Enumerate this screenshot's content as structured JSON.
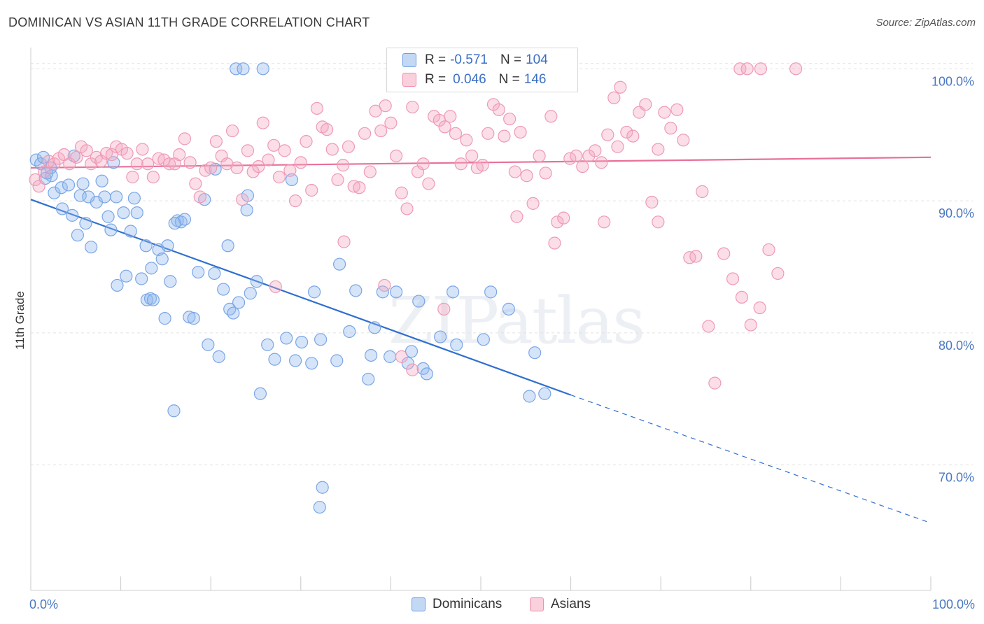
{
  "title": "DOMINICAN VS ASIAN 11TH GRADE CORRELATION CHART",
  "source": "Source: ZipAtlas.com",
  "watermark": "ZIPatlas",
  "legend": {
    "rows": [
      {
        "r_label": "R =",
        "r_value": "-0.571",
        "n_label": "N =",
        "n_value": "104",
        "color": "#90b8ec"
      },
      {
        "r_label": "R =",
        "r_value": "0.046",
        "n_label": "N =",
        "n_value": "146",
        "color": "#f4a9c0"
      }
    ]
  },
  "bottom_legend": [
    {
      "label": "Dominicans",
      "color": "#90b8ec"
    },
    {
      "label": "Asians",
      "color": "#f4a9c0"
    }
  ],
  "chart_data": {
    "type": "scatter",
    "title": "DOMINICAN VS ASIAN 11TH GRADE CORRELATION CHART",
    "xlabel": "",
    "ylabel": "11th Grade",
    "xlim": [
      0,
      100
    ],
    "ylim": [
      60.5,
      101.5
    ],
    "x_tick_labels": [
      "0.0%",
      "100.0%"
    ],
    "y_ticks": [
      70,
      80,
      90,
      100
    ],
    "y_tick_labels": [
      "70.0%",
      "80.0%",
      "90.0%",
      "100.0%"
    ],
    "grid": true,
    "series": [
      {
        "name": "Dominicans",
        "color": "#90b8ec",
        "line_color": "#2f6fcf",
        "trend": {
          "x0": 0,
          "y0": 90.1,
          "x1": 60,
          "y1": 75.3,
          "dash_to_x": 100,
          "dash_to_y": 65.6
        },
        "points": [
          [
            0.6,
            93.1
          ],
          [
            1.1,
            92.8
          ],
          [
            1.6,
            91.7
          ],
          [
            2.3,
            91.9
          ],
          [
            1.8,
            92.1
          ],
          [
            2.6,
            90.6
          ],
          [
            3.4,
            91.0
          ],
          [
            4.2,
            91.2
          ],
          [
            3.5,
            89.4
          ],
          [
            4.6,
            88.9
          ],
          [
            5.5,
            90.4
          ],
          [
            6.1,
            88.3
          ],
          [
            5.2,
            87.4
          ],
          [
            6.7,
            86.5
          ],
          [
            7.3,
            89.9
          ],
          [
            8.2,
            90.3
          ],
          [
            8.6,
            88.8
          ],
          [
            9.5,
            90.3
          ],
          [
            8.9,
            87.8
          ],
          [
            10.3,
            89.1
          ],
          [
            11.1,
            87.7
          ],
          [
            10.6,
            84.3
          ],
          [
            9.6,
            83.6
          ],
          [
            11.5,
            90.2
          ],
          [
            11.8,
            89.1
          ],
          [
            12.3,
            84.1
          ],
          [
            12.9,
            82.5
          ],
          [
            13.3,
            82.6
          ],
          [
            13.6,
            82.5
          ],
          [
            12.8,
            86.6
          ],
          [
            13.4,
            84.9
          ],
          [
            14.2,
            86.3
          ],
          [
            14.6,
            85.6
          ],
          [
            15.2,
            86.6
          ],
          [
            15.5,
            83.9
          ],
          [
            16.3,
            88.5
          ],
          [
            16.7,
            88.4
          ],
          [
            17.1,
            88.6
          ],
          [
            16.0,
            88.3
          ],
          [
            14.9,
            81.1
          ],
          [
            17.6,
            81.2
          ],
          [
            18.1,
            81.1
          ],
          [
            18.6,
            84.6
          ],
          [
            19.3,
            90.1
          ],
          [
            19.7,
            79.1
          ],
          [
            20.4,
            84.5
          ],
          [
            20.9,
            78.2
          ],
          [
            21.4,
            83.3
          ],
          [
            21.9,
            86.6
          ],
          [
            22.1,
            81.8
          ],
          [
            22.5,
            81.5
          ],
          [
            23.1,
            82.3
          ],
          [
            24.1,
            90.4
          ],
          [
            22.8,
            100.0
          ],
          [
            23.6,
            100.0
          ],
          [
            25.8,
            100.0
          ],
          [
            24.0,
            89.3
          ],
          [
            25.1,
            83.9
          ],
          [
            24.4,
            83.0
          ],
          [
            26.3,
            79.1
          ],
          [
            27.1,
            78.0
          ],
          [
            25.5,
            75.4
          ],
          [
            30.1,
            79.3
          ],
          [
            31.2,
            77.7
          ],
          [
            28.4,
            79.6
          ],
          [
            29.4,
            77.9
          ],
          [
            29.0,
            91.6
          ],
          [
            31.5,
            83.1
          ],
          [
            32.2,
            79.5
          ],
          [
            34.3,
            85.2
          ],
          [
            35.4,
            80.1
          ],
          [
            34.0,
            77.9
          ],
          [
            37.8,
            78.3
          ],
          [
            37.5,
            76.5
          ],
          [
            36.1,
            83.2
          ],
          [
            38.2,
            80.4
          ],
          [
            39.1,
            83.1
          ],
          [
            40.6,
            83.1
          ],
          [
            39.9,
            78.2
          ],
          [
            41.9,
            77.7
          ],
          [
            42.3,
            78.6
          ],
          [
            43.6,
            77.3
          ],
          [
            44.0,
            76.9
          ],
          [
            43.1,
            82.4
          ],
          [
            45.5,
            79.7
          ],
          [
            47.3,
            79.1
          ],
          [
            46.9,
            83.1
          ],
          [
            50.3,
            79.5
          ],
          [
            51.1,
            83.1
          ],
          [
            53.1,
            81.8
          ],
          [
            55.4,
            75.2
          ],
          [
            56.0,
            78.5
          ],
          [
            57.1,
            75.4
          ],
          [
            15.9,
            74.1
          ],
          [
            32.4,
            68.3
          ],
          [
            32.1,
            66.8
          ],
          [
            20.5,
            92.4
          ],
          [
            9.2,
            92.9
          ],
          [
            7.9,
            91.5
          ],
          [
            4.8,
            93.4
          ],
          [
            5.8,
            91.3
          ],
          [
            2.2,
            92.5
          ],
          [
            6.4,
            90.3
          ],
          [
            1.4,
            93.3
          ]
        ]
      },
      {
        "name": "Asians",
        "color": "#f4a9c0",
        "line_color": "#e8709a",
        "trend": {
          "x0": 0,
          "y0": 92.5,
          "x1": 100,
          "y1": 93.3
        },
        "points": [
          [
            0.5,
            91.6
          ],
          [
            0.9,
            91.1
          ],
          [
            1.5,
            92.2
          ],
          [
            2.0,
            93.0
          ],
          [
            2.6,
            92.8
          ],
          [
            3.1,
            93.2
          ],
          [
            3.7,
            93.5
          ],
          [
            4.3,
            92.8
          ],
          [
            5.1,
            93.3
          ],
          [
            5.6,
            94.1
          ],
          [
            6.2,
            93.8
          ],
          [
            6.7,
            92.8
          ],
          [
            7.3,
            93.3
          ],
          [
            7.8,
            93.0
          ],
          [
            8.4,
            93.6
          ],
          [
            9.0,
            93.5
          ],
          [
            9.5,
            94.1
          ],
          [
            10.1,
            93.9
          ],
          [
            10.7,
            93.6
          ],
          [
            11.3,
            91.8
          ],
          [
            11.8,
            92.8
          ],
          [
            12.4,
            93.9
          ],
          [
            13.0,
            92.8
          ],
          [
            13.6,
            91.8
          ],
          [
            14.2,
            93.2
          ],
          [
            14.8,
            93.1
          ],
          [
            15.4,
            92.8
          ],
          [
            16.0,
            92.8
          ],
          [
            16.5,
            93.5
          ],
          [
            17.1,
            94.7
          ],
          [
            17.7,
            92.9
          ],
          [
            18.3,
            91.3
          ],
          [
            18.8,
            90.3
          ],
          [
            19.4,
            92.3
          ],
          [
            20.0,
            92.5
          ],
          [
            20.6,
            94.5
          ],
          [
            21.2,
            93.4
          ],
          [
            21.8,
            92.8
          ],
          [
            22.4,
            95.3
          ],
          [
            22.9,
            92.5
          ],
          [
            23.5,
            90.1
          ],
          [
            24.1,
            93.8
          ],
          [
            24.7,
            92.2
          ],
          [
            25.3,
            92.6
          ],
          [
            25.8,
            95.9
          ],
          [
            26.4,
            93.1
          ],
          [
            27.0,
            94.2
          ],
          [
            27.6,
            91.8
          ],
          [
            28.2,
            93.8
          ],
          [
            28.8,
            92.3
          ],
          [
            29.4,
            90.0
          ],
          [
            30.0,
            92.9
          ],
          [
            30.6,
            94.5
          ],
          [
            31.2,
            90.8
          ],
          [
            31.8,
            97.0
          ],
          [
            32.4,
            95.6
          ],
          [
            32.9,
            95.4
          ],
          [
            33.5,
            93.9
          ],
          [
            34.1,
            91.6
          ],
          [
            34.7,
            92.7
          ],
          [
            35.3,
            94.1
          ],
          [
            35.9,
            91.1
          ],
          [
            36.5,
            91.0
          ],
          [
            37.1,
            95.1
          ],
          [
            37.7,
            92.2
          ],
          [
            38.3,
            96.8
          ],
          [
            38.9,
            95.3
          ],
          [
            39.4,
            97.2
          ],
          [
            40.0,
            95.9
          ],
          [
            40.6,
            93.4
          ],
          [
            41.2,
            90.6
          ],
          [
            41.8,
            89.4
          ],
          [
            42.4,
            97.1
          ],
          [
            43.0,
            92.2
          ],
          [
            43.6,
            92.8
          ],
          [
            44.2,
            91.3
          ],
          [
            44.8,
            96.4
          ],
          [
            45.4,
            96.1
          ],
          [
            46.0,
            95.6
          ],
          [
            46.6,
            96.4
          ],
          [
            47.2,
            95.1
          ],
          [
            47.8,
            92.8
          ],
          [
            48.4,
            94.6
          ],
          [
            49.0,
            93.4
          ],
          [
            49.6,
            92.5
          ],
          [
            50.2,
            92.7
          ],
          [
            50.8,
            95.1
          ],
          [
            51.4,
            97.3
          ],
          [
            52.0,
            96.9
          ],
          [
            52.6,
            94.9
          ],
          [
            53.2,
            96.2
          ],
          [
            53.8,
            92.2
          ],
          [
            54.4,
            95.2
          ],
          [
            55.1,
            91.9
          ],
          [
            55.8,
            89.8
          ],
          [
            56.5,
            93.4
          ],
          [
            57.2,
            92.1
          ],
          [
            57.8,
            96.4
          ],
          [
            58.5,
            88.4
          ],
          [
            59.2,
            88.7
          ],
          [
            59.9,
            93.2
          ],
          [
            60.6,
            93.4
          ],
          [
            61.3,
            92.6
          ],
          [
            62.0,
            93.4
          ],
          [
            62.7,
            93.8
          ],
          [
            63.4,
            92.9
          ],
          [
            64.1,
            95.0
          ],
          [
            64.8,
            97.8
          ],
          [
            65.5,
            98.6
          ],
          [
            66.2,
            95.2
          ],
          [
            66.9,
            94.9
          ],
          [
            67.6,
            96.7
          ],
          [
            68.3,
            97.3
          ],
          [
            69.0,
            89.9
          ],
          [
            69.7,
            93.9
          ],
          [
            70.4,
            96.7
          ],
          [
            71.1,
            95.5
          ],
          [
            71.8,
            96.9
          ],
          [
            72.5,
            94.6
          ],
          [
            73.2,
            85.7
          ],
          [
            73.9,
            85.8
          ],
          [
            74.6,
            90.7
          ],
          [
            75.3,
            80.5
          ],
          [
            76.0,
            76.2
          ],
          [
            77.0,
            86.0
          ],
          [
            78.0,
            84.1
          ],
          [
            79.0,
            82.7
          ],
          [
            80.0,
            80.6
          ],
          [
            81.0,
            81.9
          ],
          [
            82.0,
            86.3
          ],
          [
            83.0,
            84.5
          ],
          [
            27.2,
            83.5
          ],
          [
            34.8,
            86.9
          ],
          [
            41.2,
            78.2
          ],
          [
            42.4,
            77.2
          ],
          [
            39.3,
            83.6
          ],
          [
            54.0,
            88.8
          ],
          [
            58.2,
            86.8
          ],
          [
            45.9,
            81.8
          ],
          [
            78.8,
            100.0
          ],
          [
            79.6,
            100.0
          ],
          [
            81.1,
            100.0
          ],
          [
            85.0,
            100.0
          ],
          [
            65.2,
            94.1
          ],
          [
            63.7,
            88.4
          ],
          [
            69.7,
            88.4
          ]
        ]
      }
    ]
  }
}
